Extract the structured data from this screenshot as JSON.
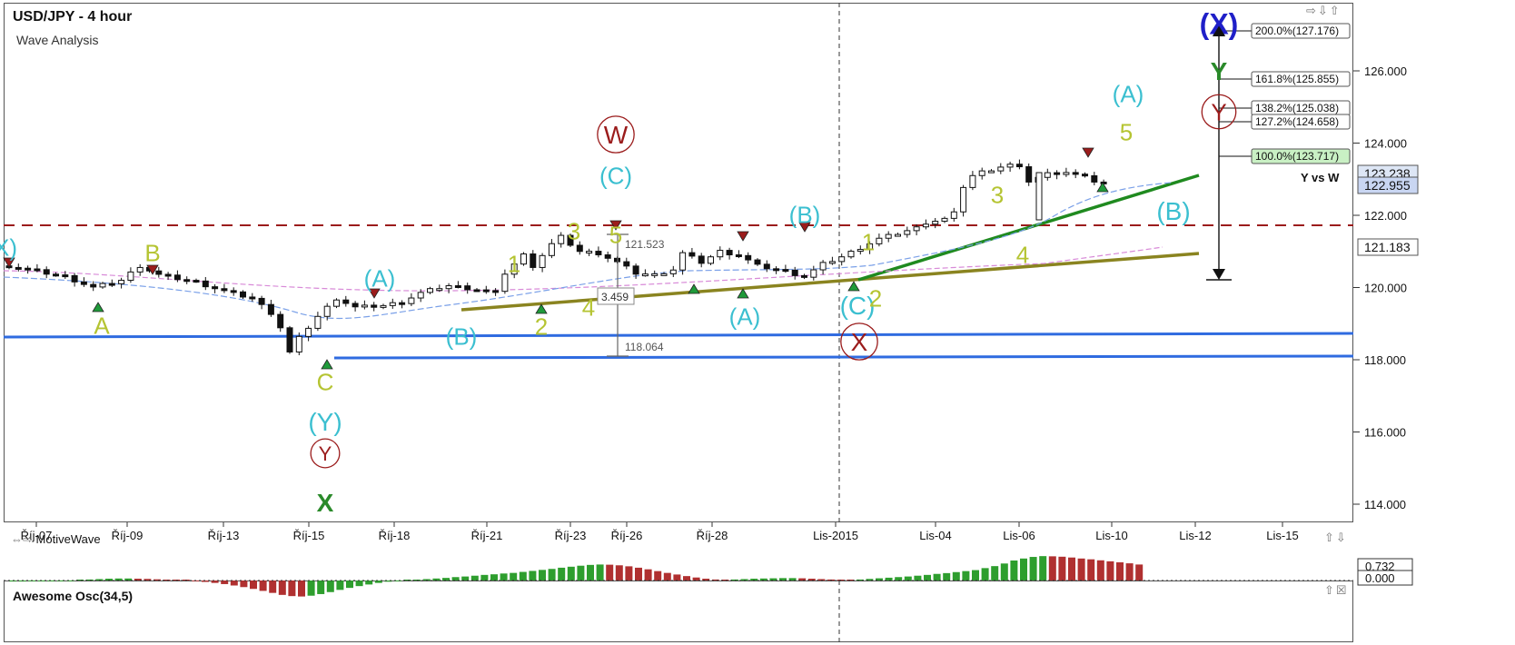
{
  "header": {
    "title": "USD/JPY - 4 hour",
    "subtitle": "Wave Analysis",
    "brand": "MotiveWave",
    "osc_title": "Awesome Osc(34,5)"
  },
  "colors": {
    "bull_bar": "#2e9e2e",
    "bear_bar": "#b03030",
    "support_line": "#2f6be0",
    "resistance_dash": "#9b1c1c",
    "trend_green": "#1f8a1f",
    "trend_olive": "#8a8420",
    "wave_cyan": "#3bbfd0",
    "wave_yellow": "#b5c432",
    "wave_red": "#9b1c1c",
    "wave_green": "#2a8a2a",
    "wave_blue": "#1f1fc8"
  },
  "chart_data": [
    {
      "type": "candlestick",
      "title": "USD/JPY - 4 hour",
      "subtitle": "Wave Analysis",
      "x_tick_labels": [
        "Říj-07",
        "Říj-09",
        "Říj-13",
        "Říj-15",
        "Říj-18",
        "Říj-21",
        "Říj-23",
        "Říj-26",
        "Říj-28",
        "Lis-2015",
        "Lis-04",
        "Lis-06",
        "Lis-10",
        "Lis-12",
        "Lis-15"
      ],
      "y_tick_labels": [
        "114.000",
        "116.000",
        "118.000",
        "120.000",
        "122.000",
        "124.000",
        "126.000"
      ],
      "ylim": [
        113.6,
        127.6
      ],
      "price_path": [
        [
          0,
          120.6
        ],
        [
          6,
          120.3
        ],
        [
          9,
          120.0
        ],
        [
          12,
          120.2
        ],
        [
          14,
          120.6
        ],
        [
          16,
          120.35
        ],
        [
          20,
          120.15
        ],
        [
          23,
          119.9
        ],
        [
          26,
          119.7
        ],
        [
          28,
          119.3
        ],
        [
          29,
          118.9
        ],
        [
          30,
          118.2
        ],
        [
          31,
          118.6
        ],
        [
          32,
          118.9
        ],
        [
          33,
          119.2
        ],
        [
          34,
          119.45
        ],
        [
          35,
          119.7
        ],
        [
          37,
          119.45
        ],
        [
          40,
          119.5
        ],
        [
          42,
          119.6
        ],
        [
          44,
          119.85
        ],
        [
          46,
          120.0
        ],
        [
          47,
          120.05
        ],
        [
          50,
          119.95
        ],
        [
          52,
          119.85
        ],
        [
          53,
          120.4
        ],
        [
          55,
          120.9
        ],
        [
          56,
          120.6
        ],
        [
          58,
          121.2
        ],
        [
          59,
          121.4
        ],
        [
          61,
          121.0
        ],
        [
          63,
          120.95
        ],
        [
          65,
          120.7
        ],
        [
          67,
          120.4
        ],
        [
          69,
          120.35
        ],
        [
          71,
          120.5
        ],
        [
          72,
          120.95
        ],
        [
          74,
          120.7
        ],
        [
          76,
          121.0
        ],
        [
          78,
          120.9
        ],
        [
          80,
          120.6
        ],
        [
          83,
          120.45
        ],
        [
          85,
          120.3
        ],
        [
          87,
          120.65
        ],
        [
          89,
          120.85
        ],
        [
          91,
          121.1
        ],
        [
          93,
          121.35
        ],
        [
          95,
          121.5
        ],
        [
          97,
          121.65
        ],
        [
          98,
          121.8
        ],
        [
          100,
          121.9
        ],
        [
          101,
          122.05
        ],
        [
          102,
          122.8
        ],
        [
          103,
          123.1
        ],
        [
          104,
          123.2
        ],
        [
          106,
          123.35
        ],
        [
          107,
          123.4
        ],
        [
          108,
          123.3
        ],
        [
          109,
          122.95
        ],
        [
          111,
          123.15
        ],
        [
          113,
          123.2
        ],
        [
          115,
          123.05
        ],
        [
          116,
          122.95
        ],
        [
          117,
          122.9
        ]
      ],
      "annotations": {
        "fib_levels": [
          "200.0%(127.176)",
          "161.8%(125.855)",
          "138.2%(125.038)",
          "127.2%(124.658)",
          "100.0%(123.717)"
        ],
        "price_tags": [
          "123.238",
          "122.955",
          "121.183"
        ],
        "measure": [
          "121.523",
          "3.459",
          "118.064"
        ],
        "note": "Y vs W",
        "wave_labels": [
          "X)",
          "A",
          "B",
          "(A)",
          "C",
          "(Y)",
          "Y",
          "X",
          "(B)",
          "1",
          "2",
          "3",
          "4",
          "5",
          "(C)",
          "W",
          "(A)",
          "(B)",
          "1",
          "(C)",
          "2",
          "X",
          "3",
          "4",
          "(A)",
          "5",
          "(B)",
          "(X)",
          "Y",
          "Y"
        ]
      }
    },
    {
      "type": "bar",
      "title": "Awesome Osc(34,5)",
      "y_tick_labels": [
        "0.732",
        "0.000"
      ],
      "values": [
        -0.05,
        -0.05,
        -0.04,
        -0.04,
        -0.03,
        -0.02,
        -0.01,
        0.02,
        0.05,
        0.07,
        0.09,
        0.1,
        0.1,
        0.09,
        0.08,
        0.06,
        0.04,
        0.02,
        0.0,
        -0.03,
        -0.07,
        -0.12,
        -0.18,
        -0.25,
        -0.33,
        -0.42,
        -0.52,
        -0.62,
        -0.72,
        -0.78,
        -0.8,
        -0.76,
        -0.68,
        -0.58,
        -0.47,
        -0.37,
        -0.28,
        -0.2,
        -0.12,
        -0.06,
        -0.02,
        0.01,
        0.04,
        0.07,
        0.1,
        0.13,
        0.17,
        0.2,
        0.24,
        0.28,
        0.31,
        0.35,
        0.38,
        0.43,
        0.48,
        0.53,
        0.58,
        0.64,
        0.69,
        0.74,
        0.78,
        0.8,
        0.79,
        0.76,
        0.71,
        0.64,
        0.56,
        0.47,
        0.38,
        0.3,
        0.22,
        0.15,
        0.09,
        0.05,
        0.04,
        0.05,
        0.07,
        0.09,
        0.1,
        0.11,
        0.12,
        0.12,
        0.11,
        0.09,
        0.07,
        0.05,
        0.04,
        0.03,
        0.05,
        0.08,
        0.11,
        0.14,
        0.17,
        0.2,
        0.24,
        0.28,
        0.33,
        0.37,
        0.42,
        0.47,
        0.52,
        0.62,
        0.72,
        0.85,
        1.0,
        1.1,
        1.18,
        1.22,
        1.21,
        1.19,
        1.15,
        1.1,
        1.06,
        1.01,
        0.96,
        0.91,
        0.86,
        0.8
      ]
    }
  ]
}
